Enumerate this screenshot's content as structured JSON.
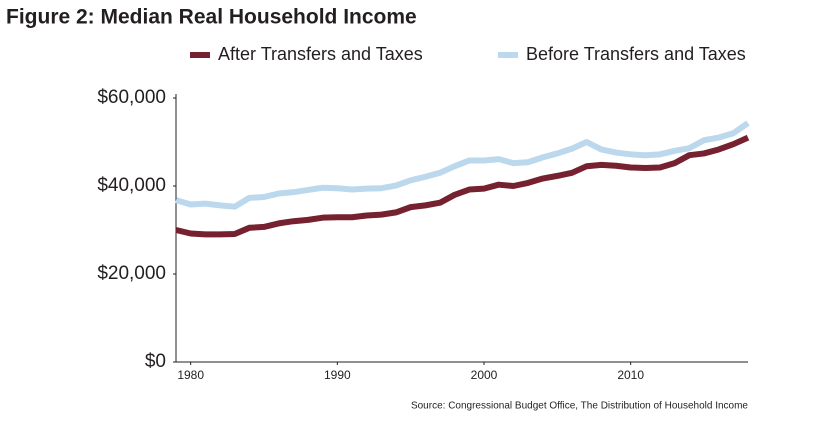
{
  "chart_data": {
    "type": "line",
    "title": "Figure 2: Median Real Household Income",
    "source": "Source: Congressional Budget Office, The Distribution of Household Income",
    "x": [
      1979,
      1980,
      1981,
      1982,
      1983,
      1984,
      1985,
      1986,
      1987,
      1988,
      1989,
      1990,
      1991,
      1992,
      1993,
      1994,
      1995,
      1996,
      1997,
      1998,
      1999,
      2000,
      2001,
      2002,
      2003,
      2004,
      2005,
      2006,
      2007,
      2008,
      2009,
      2010,
      2011,
      2012,
      2013,
      2014,
      2015,
      2016,
      2017,
      2018
    ],
    "series": [
      {
        "name": "After Transfers and Taxes",
        "color": "#76212f",
        "values": [
          30000,
          29200,
          29000,
          29000,
          29100,
          30500,
          30700,
          31500,
          32000,
          32300,
          32800,
          32900,
          32900,
          33300,
          33500,
          34000,
          35200,
          35600,
          36200,
          38000,
          39200,
          39400,
          40300,
          40000,
          40700,
          41700,
          42300,
          43000,
          44500,
          44800,
          44600,
          44200,
          44100,
          44200,
          45200,
          47000,
          47400,
          48300,
          49500,
          51000
        ]
      },
      {
        "name": "Before Transfers and Taxes",
        "color": "#bcd8ec",
        "values": [
          36800,
          35800,
          36000,
          35600,
          35300,
          37300,
          37500,
          38300,
          38600,
          39100,
          39600,
          39500,
          39200,
          39400,
          39500,
          40100,
          41300,
          42100,
          43000,
          44500,
          45800,
          45800,
          46100,
          45200,
          45400,
          46500,
          47400,
          48500,
          50000,
          48300,
          47600,
          47200,
          47000,
          47200,
          48000,
          48600,
          50400,
          51000,
          52000,
          54300
        ]
      }
    ],
    "xlim": [
      1979,
      2018
    ],
    "xticks": [
      1980,
      1990,
      2000,
      2010
    ],
    "ylim": [
      0,
      60000
    ],
    "yticks": [
      {
        "value": 0,
        "label": "$0"
      },
      {
        "value": 20000,
        "label": "$20,000"
      },
      {
        "value": 40000,
        "label": "$40,000"
      },
      {
        "value": 60000,
        "label": "$60,000"
      }
    ]
  }
}
